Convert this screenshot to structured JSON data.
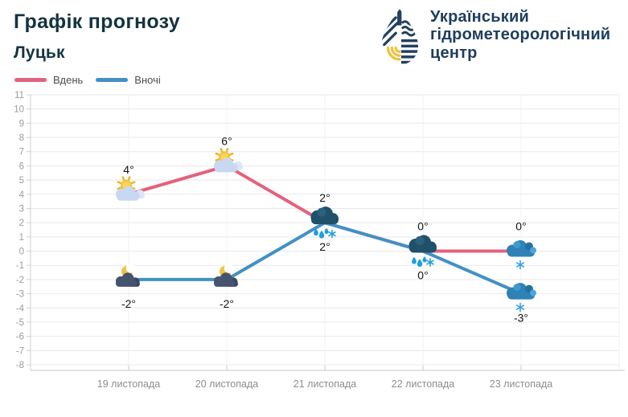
{
  "header": {
    "title": "Графік прогнозу",
    "subtitle": "Луцьк"
  },
  "logo": {
    "name": "ukrainian-hydrometeorological-center-logo",
    "lines": [
      "Український",
      "гідрометеорологічний",
      "центр"
    ]
  },
  "palette": {
    "day_line": "#e5617c",
    "night_line": "#4290c6",
    "title_text": "#143340",
    "logo_text": "#1e3d5e",
    "logo_navy": "#23405f",
    "logo_yellow": "#f0c23e",
    "sun_yellow": "#f2c238",
    "day_cloud": "#c8d8f2",
    "night_cloud": "#44536e",
    "sleet_cloud": "#20506a",
    "snow_cloud": "#2e82b5",
    "precip_blue": "#1f9ddd"
  },
  "chart_data": {
    "type": "line",
    "title": "Графік прогнозу",
    "subtitle": "Луцьк",
    "categories": [
      "19 листопада",
      "20 листопада",
      "21 листопада",
      "22 листопада",
      "23 листопада"
    ],
    "series": [
      {
        "name": "Вдень",
        "color": "#e5617c",
        "values": [
          4,
          6,
          2,
          0,
          0
        ],
        "labels": [
          "4°",
          "6°",
          "2°",
          "0°",
          "0°"
        ],
        "icons": [
          "partly-cloudy-day",
          "partly-cloudy-day",
          "sleet-dark-cloud",
          "sleet-dark-cloud",
          "snow-blue-cloud"
        ]
      },
      {
        "name": "Вночі",
        "color": "#4290c6",
        "values": [
          -2,
          -2,
          2,
          0,
          -3
        ],
        "labels": [
          "-2°",
          "-2°",
          "2°",
          "0°",
          "-3°"
        ],
        "icons": [
          "moon-cloud",
          "moon-cloud",
          "sleet-dark-cloud",
          "sleet-dark-cloud",
          "snow-blue-cloud"
        ]
      }
    ],
    "ylim": [
      -8,
      11
    ],
    "ytick_step": 1,
    "grid": true,
    "legend_position": "top-left"
  }
}
